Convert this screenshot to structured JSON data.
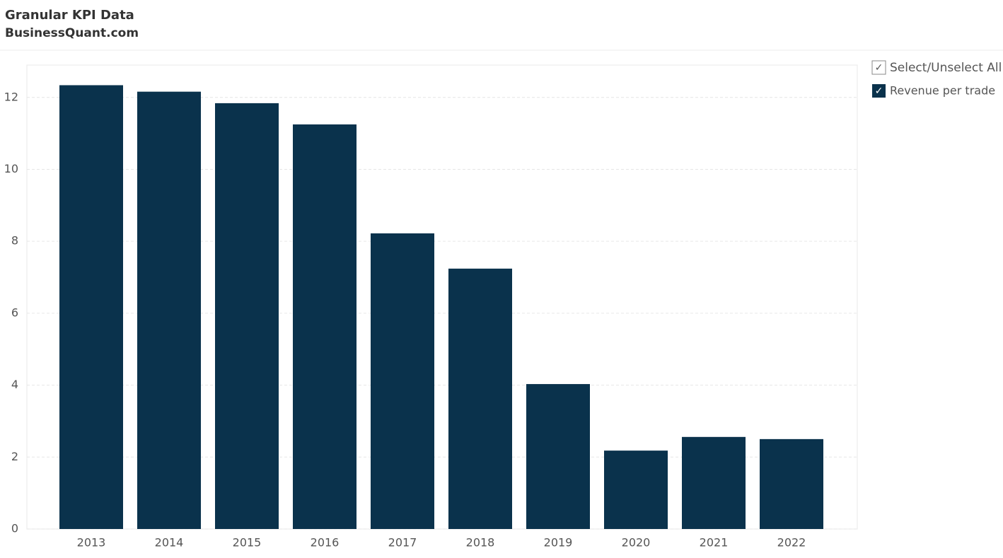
{
  "chart_data": {
    "type": "bar",
    "title": "Granular KPI Data",
    "subtitle": "BusinessQuant.com",
    "select_all_label": "Select/Unselect All",
    "categories": [
      "2013",
      "2014",
      "2015",
      "2016",
      "2017",
      "2018",
      "2019",
      "2020",
      "2021",
      "2022"
    ],
    "series": [
      {
        "name": "Revenue per trade",
        "color": "#0a324c",
        "values": [
          12.34,
          12.16,
          11.84,
          11.25,
          8.22,
          7.24,
          4.03,
          2.18,
          2.56,
          2.5
        ]
      }
    ],
    "ylim": [
      0,
      12.9
    ],
    "yticks": [
      0,
      2,
      4,
      6,
      8,
      10,
      12
    ],
    "grid": true,
    "legend": "right"
  }
}
